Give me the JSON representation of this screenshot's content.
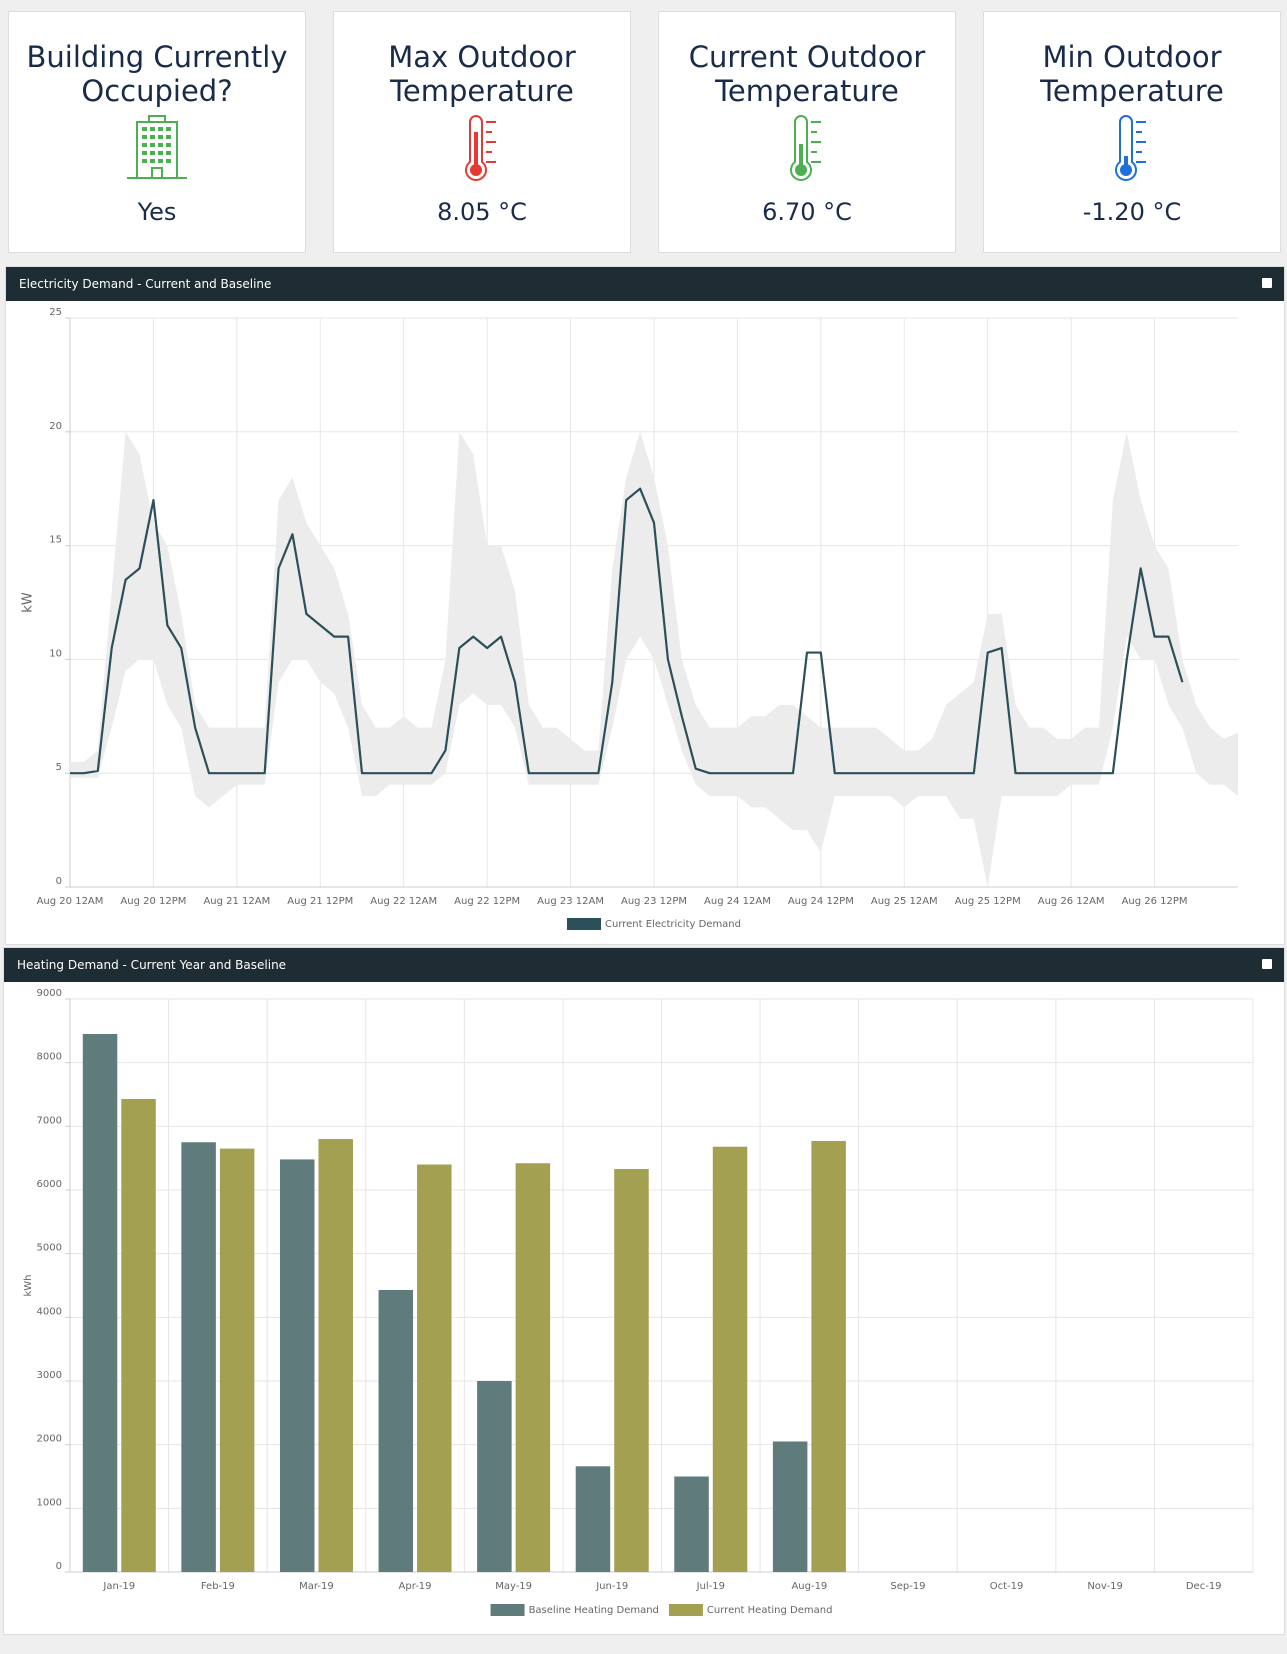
{
  "cards": [
    {
      "title": "Building Currently Occupied?",
      "value": "Yes"
    },
    {
      "title": "Max Outdoor Temperature",
      "value": "8.05 °C"
    },
    {
      "title": "Current Outdoor Temperature",
      "value": "6.70 °C"
    },
    {
      "title": "Min Outdoor Temperature",
      "value": "-1.20 °C"
    }
  ],
  "chart_data": [
    {
      "type": "line",
      "title": "Electricity Demand - Current and Baseline",
      "ylabel": "kW",
      "categories": [
        "Aug 20 12AM",
        null,
        null,
        null,
        null,
        null,
        "Aug 20 12PM",
        null,
        null,
        null,
        null,
        null,
        "Aug 21 12AM",
        null,
        null,
        null,
        null,
        null,
        "Aug 21 12PM",
        null,
        null,
        null,
        null,
        null,
        "Aug 22 12AM",
        null,
        null,
        null,
        null,
        null,
        "Aug 22 12PM",
        null,
        null,
        null,
        null,
        null,
        "Aug 23 12AM",
        null,
        null,
        null,
        null,
        null,
        "Aug 23 12PM",
        null,
        null,
        null,
        null,
        null,
        "Aug 24 12AM",
        null,
        null,
        null,
        null,
        null,
        "Aug 24 12PM",
        null,
        null,
        null,
        null,
        null,
        "Aug 25 12AM",
        null,
        null,
        null,
        null,
        null,
        "Aug 25 12PM",
        null,
        null,
        null,
        null,
        null,
        "Aug 26 12AM",
        null,
        null,
        null,
        null,
        null,
        "Aug 26 12PM",
        null,
        null,
        null,
        null,
        null,
        null
      ],
      "band": {
        "color": "#ececec",
        "low": [
          4.8,
          4.8,
          4.8,
          7,
          9.5,
          10,
          10,
          8,
          7,
          4,
          3.5,
          4,
          4.5,
          4.5,
          4.5,
          9,
          10,
          10,
          9,
          8.5,
          7,
          4,
          4,
          4.5,
          4.5,
          4.5,
          4.5,
          5,
          8,
          8.5,
          8,
          8,
          7,
          4.5,
          4.5,
          4.5,
          4.5,
          4.5,
          4.5,
          7,
          10,
          11,
          10,
          8,
          6,
          4.5,
          4,
          4,
          4,
          3.5,
          3.5,
          3,
          2.5,
          2.5,
          1.5,
          4,
          4,
          4,
          4,
          4,
          3.5,
          4,
          4,
          4,
          3,
          3,
          0,
          4,
          4,
          4,
          4,
          4,
          4.5,
          4.5,
          4.5,
          7,
          11,
          10,
          10,
          8,
          7,
          5,
          4.5,
          4.5,
          4
        ],
        "high": [
          5.5,
          5.5,
          6,
          13,
          20,
          19,
          16,
          15,
          12,
          8,
          7,
          7,
          7,
          7,
          7,
          17,
          18,
          16,
          15,
          14,
          12,
          8,
          7,
          7,
          7.5,
          7,
          7,
          10,
          20,
          19,
          15,
          15,
          13,
          8,
          7,
          7,
          6.5,
          6,
          6,
          14,
          18,
          20,
          18,
          15,
          10,
          8,
          7,
          7,
          7,
          7.5,
          7.5,
          8,
          8,
          7.5,
          7,
          7,
          7,
          7,
          7,
          6.5,
          6,
          6,
          6.5,
          8,
          8.5,
          9,
          12,
          12,
          8,
          7,
          7,
          6.5,
          6.5,
          7,
          7,
          17,
          20,
          17,
          15,
          14,
          10,
          8,
          7,
          6.5,
          6.8
        ]
      },
      "series": [
        {
          "name": "Current Electricity Demand",
          "color": "#2d4f5a",
          "values": [
            5,
            5,
            5.1,
            10.5,
            13.5,
            14,
            17,
            11.5,
            10.5,
            7,
            5,
            5,
            5,
            5,
            5,
            14,
            15.5,
            12,
            11.5,
            11,
            11,
            5,
            5,
            5,
            5,
            5,
            5,
            6,
            10.5,
            11,
            10.5,
            11,
            9,
            5,
            5,
            5,
            5,
            5,
            5,
            9,
            17,
            17.5,
            16,
            10,
            7.5,
            5.2,
            5,
            5,
            5,
            5,
            5,
            5,
            5,
            10.3,
            10.3,
            5,
            5,
            5,
            5,
            5,
            5,
            5,
            5,
            5,
            5,
            5,
            10.3,
            10.5,
            5,
            5,
            5,
            5,
            5,
            5,
            5,
            5,
            10,
            14,
            11,
            11,
            9,
            null,
            null,
            null,
            null
          ]
        }
      ],
      "ylim": [
        0,
        25
      ],
      "yticks": [
        0,
        5,
        10,
        15,
        20,
        25
      ],
      "grid": true,
      "legend": "bottom"
    },
    {
      "type": "bar",
      "title": "Heating Demand - Current Year and Baseline",
      "ylabel": "kWh",
      "categories": [
        "Jan-19",
        "Feb-19",
        "Mar-19",
        "Apr-19",
        "May-19",
        "Jun-19",
        "Jul-19",
        "Aug-19",
        "Sep-19",
        "Oct-19",
        "Nov-19",
        "Dec-19"
      ],
      "series": [
        {
          "name": "Baseline Heating Demand",
          "color": "#5f7b7c",
          "values": [
            8450,
            6750,
            6480,
            4430,
            3000,
            1660,
            1500,
            2050,
            null,
            null,
            null,
            null
          ]
        },
        {
          "name": "Current Heating Demand",
          "color": "#a3a052",
          "values": [
            7430,
            6650,
            6800,
            6400,
            6420,
            6330,
            6680,
            6770,
            null,
            null,
            null,
            null
          ]
        }
      ],
      "ylim": [
        0,
        9000
      ],
      "yticks": [
        0,
        1000,
        2000,
        3000,
        4000,
        5000,
        6000,
        7000,
        8000,
        9000
      ],
      "grid": true,
      "legend": "bottom"
    }
  ]
}
